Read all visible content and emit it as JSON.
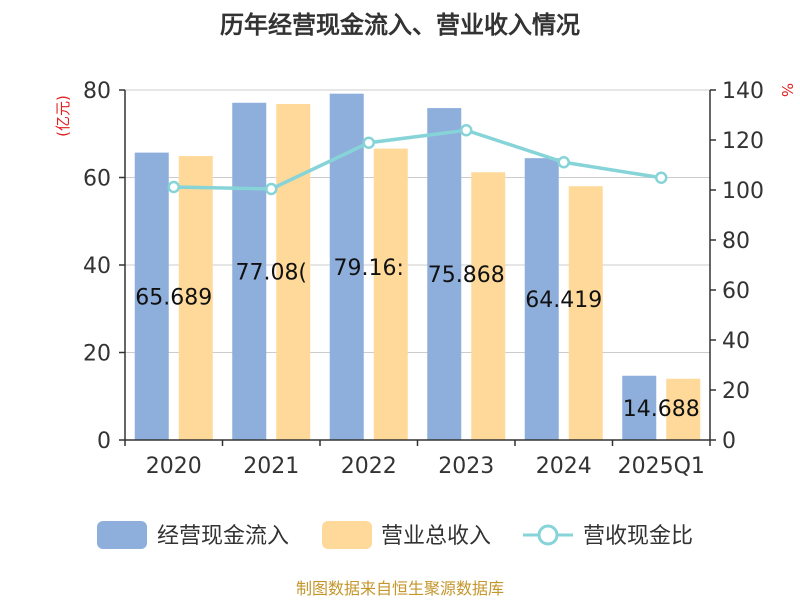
{
  "title": "历年经营现金流入、营业收入情况",
  "source": "制图数据来自恒生聚源数据库",
  "left_axis": {
    "unit": "(亿元)",
    "ticks": [
      "0",
      "20",
      "40",
      "60",
      "80"
    ]
  },
  "right_axis": {
    "unit": "%",
    "ticks": [
      "0",
      "20",
      "40",
      "60",
      "80",
      "100",
      "120",
      "140"
    ]
  },
  "legend": {
    "series1": "经营现金流入",
    "series2": "营业总收入",
    "series3": "营收现金比"
  },
  "colors": {
    "series1": "#8eaedb",
    "series2": "#ffd999",
    "series3": "#86d4d8",
    "axis": "#333333",
    "grid": "#cccccc",
    "unit_red": "#e02020",
    "source": "#c4962c"
  },
  "chart_data": {
    "type": "bar",
    "categories": [
      "2020",
      "2021",
      "2022",
      "2023",
      "2024",
      "2025Q1"
    ],
    "series": [
      {
        "name": "经营现金流入",
        "axis": "left",
        "type": "bar",
        "values": [
          65.689,
          77.08,
          79.16,
          75.868,
          64.419,
          14.688
        ],
        "labels": [
          "65.689",
          "77.08(",
          "79.16:",
          "75.868",
          "64.419",
          "14.688"
        ]
      },
      {
        "name": "营业总收入",
        "axis": "left",
        "type": "bar",
        "values": [
          64.9,
          76.8,
          66.6,
          61.2,
          58.0,
          14.0
        ]
      },
      {
        "name": "营收现金比",
        "axis": "right",
        "type": "line",
        "values": [
          101.2,
          100.4,
          118.9,
          123.9,
          111.1,
          104.9
        ]
      }
    ],
    "ylim_left": [
      0,
      80
    ],
    "ylim_right": [
      0,
      140
    ],
    "grid": true,
    "legend_position": "bottom"
  }
}
